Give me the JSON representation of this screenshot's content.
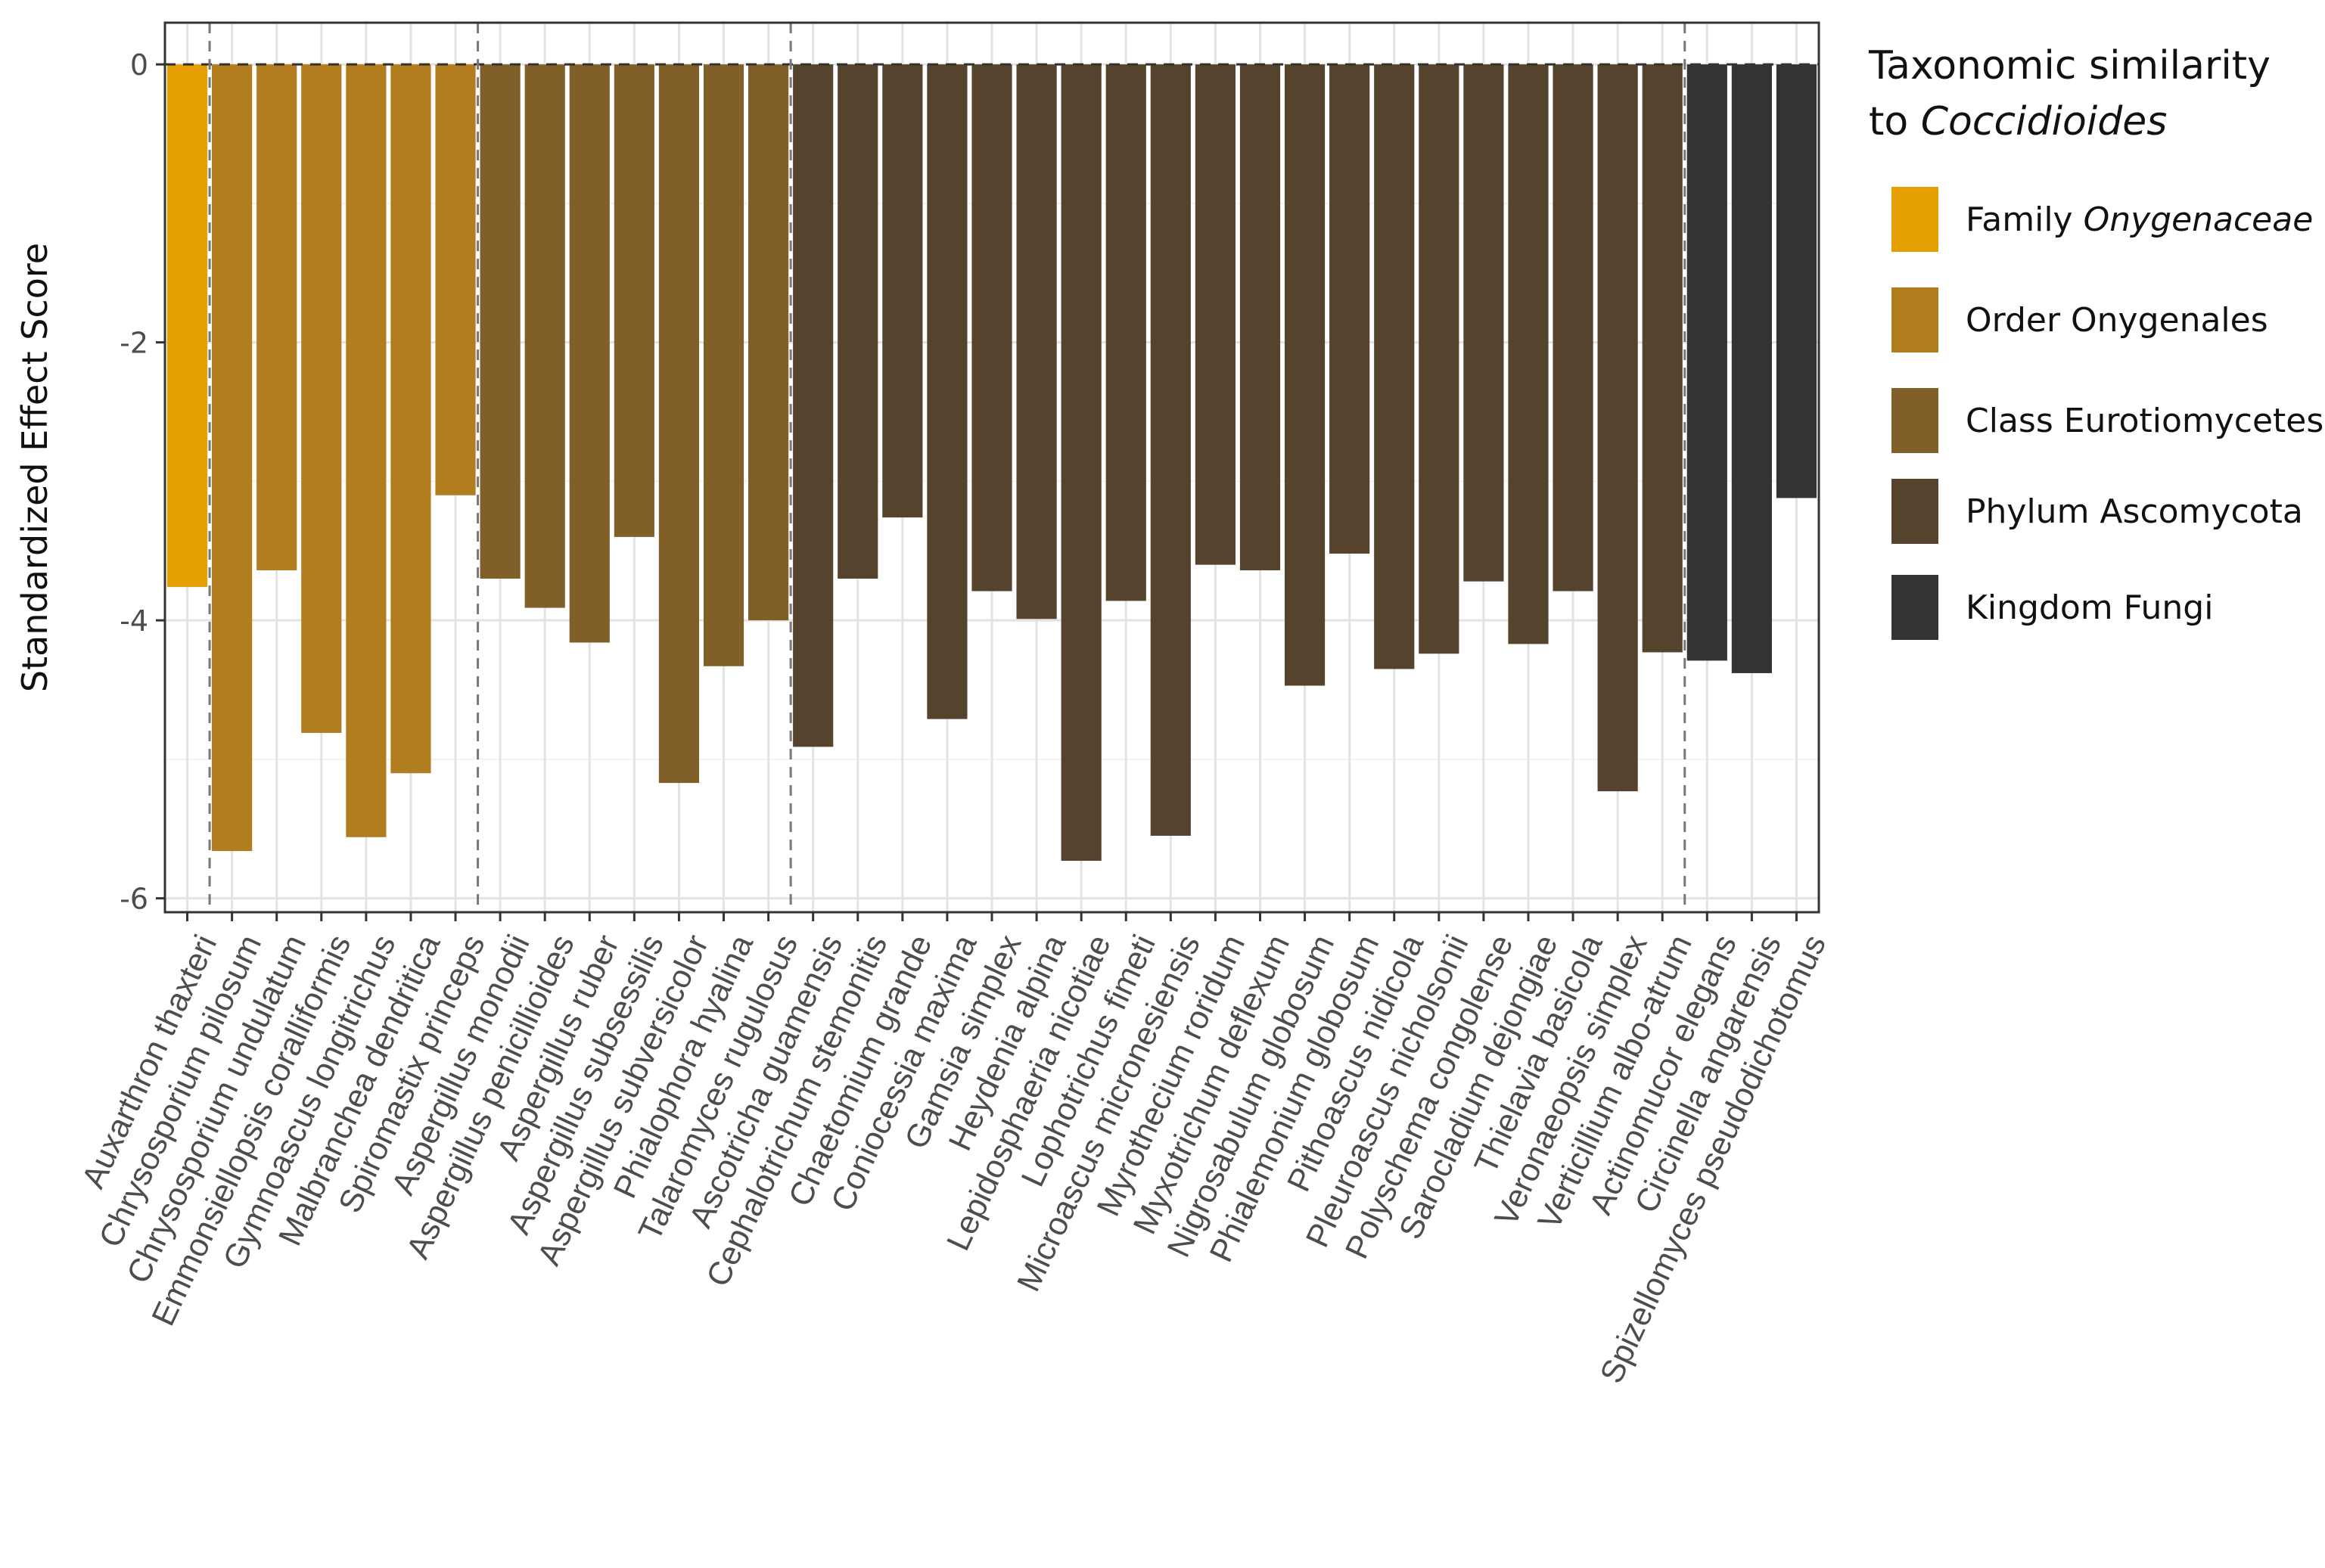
{
  "chart_data": {
    "type": "bar",
    "ylabel": "Standardized Effect Score",
    "xlabel": "",
    "ylim": [
      -6.1,
      0.3
    ],
    "yticks": [
      0,
      -2,
      -4,
      -6
    ],
    "ytick_labels": [
      "0",
      "-2",
      "-4",
      "-6"
    ],
    "grid": true,
    "legend_position": "right",
    "group_separators_after_index": [
      0,
      6,
      13,
      33
    ],
    "categories": [
      "Auxarthron thaxteri",
      "Chrysosporium pilosum",
      "Chrysosporium undulatum",
      "Emmonsiellopsis coralliformis",
      "Gymnoascus longitrichus",
      "Malbranchea dendritica",
      "Spiromastix princeps",
      "Aspergillus monodii",
      "Aspergillus penicillioides",
      "Aspergillus ruber",
      "Aspergillus subsessilis",
      "Aspergillus subversicolor",
      "Phialophora hyalina",
      "Talaromyces rugulosus",
      "Ascotricha guamensis",
      "Cephalotrichum stemonitis",
      "Chaetomium grande",
      "Coniocessia maxima",
      "Gamsia simplex",
      "Heydenia alpina",
      "Lepidosphaeria nicotiae",
      "Lophotrichus fimeti",
      "Microascus micronesiensis",
      "Myrothecium roridum",
      "Myxotrichum deflexum",
      "Nigrosabulum globosum",
      "Phialemonium globosum",
      "Pithoascus nidicola",
      "Pleuroascus nicholsonii",
      "Polyschema congolense",
      "Sarocladium dejongiae",
      "Thielavia basicola",
      "Veronaeopsis simplex",
      "Verticillium albo-atrum",
      "Actinomucor elegans",
      "Circinella angarensis",
      "Spizellomyces pseudodichotomus"
    ],
    "values": [
      -3.76,
      -5.66,
      -3.64,
      -4.81,
      -5.56,
      -5.1,
      -3.1,
      -3.7,
      -3.91,
      -4.16,
      -3.4,
      -5.17,
      -4.33,
      -4.0,
      -4.91,
      -3.7,
      -3.26,
      -4.71,
      -3.79,
      -3.99,
      -5.73,
      -3.86,
      -5.55,
      -3.6,
      -3.64,
      -4.47,
      -3.52,
      -4.35,
      -4.24,
      -3.72,
      -4.17,
      -3.79,
      -5.23,
      -4.23,
      -4.29,
      -4.38,
      -3.12
    ],
    "groups": [
      0,
      1,
      1,
      1,
      1,
      1,
      1,
      2,
      2,
      2,
      2,
      2,
      2,
      2,
      3,
      3,
      3,
      3,
      3,
      3,
      3,
      3,
      3,
      3,
      3,
      3,
      3,
      3,
      3,
      3,
      3,
      3,
      3,
      3,
      4,
      4,
      4
    ],
    "colors": {
      "family": "#E69F00",
      "order": "#B27D1E",
      "class": "#806028",
      "phylum": "#55432E",
      "kingdom": "#333333"
    },
    "legend": {
      "title_line1": "Taxonomic similarity",
      "title_line2_prefix": "to ",
      "title_line2_italic": "Coccidioides",
      "items": [
        {
          "key": "family",
          "label": "Family ",
          "label_italic": "Onygenaceae"
        },
        {
          "key": "order",
          "label": "Order Onygenales",
          "label_italic": ""
        },
        {
          "key": "class",
          "label": "Class Eurotiomycetes",
          "label_italic": ""
        },
        {
          "key": "phylum",
          "label": "Phylum Ascomycota",
          "label_italic": ""
        },
        {
          "key": "kingdom",
          "label": "Kingdom Fungi",
          "label_italic": ""
        }
      ]
    }
  }
}
